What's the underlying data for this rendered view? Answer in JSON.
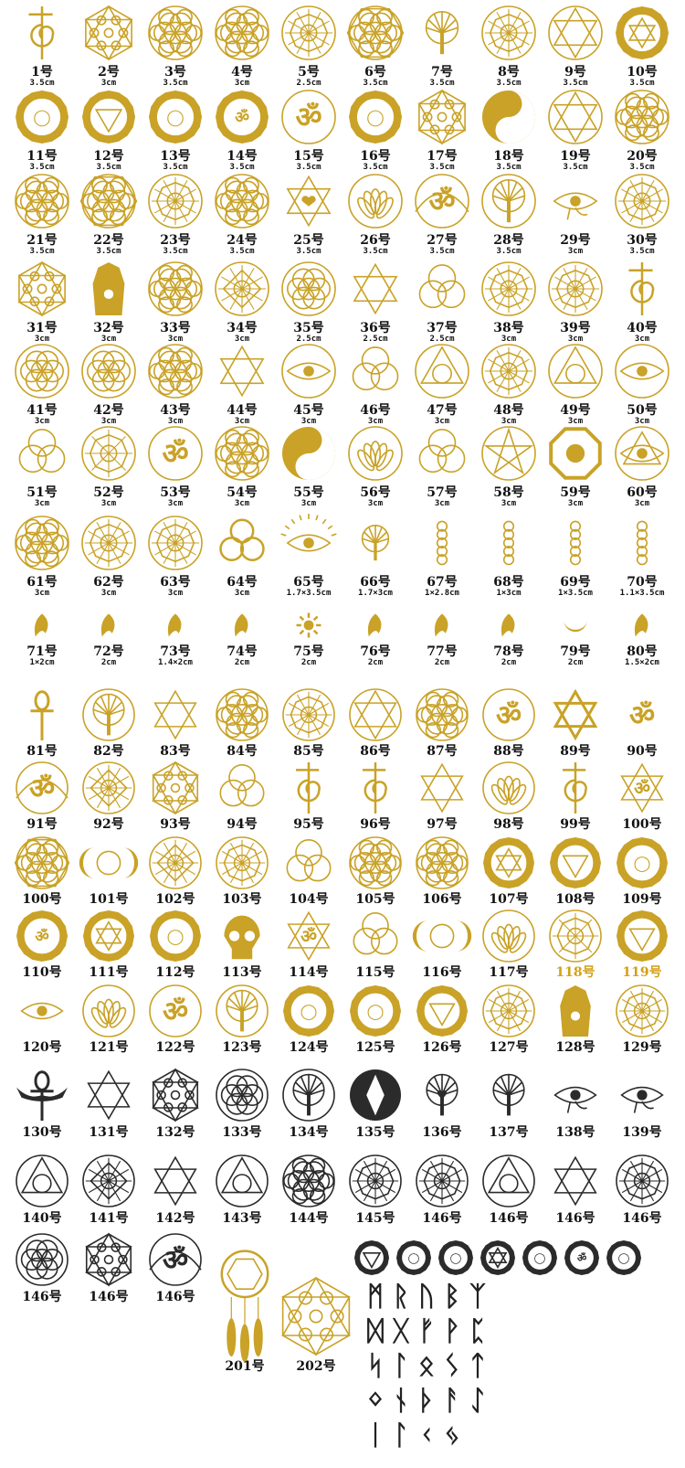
{
  "colors": {
    "gold": "#c9a227",
    "dark": "#2b2b2b",
    "label_gold": "#d4a017"
  },
  "section1": [
    {
      "num": "1号",
      "size": "3.5cm",
      "icon": "reiki-choku-rei-icon"
    },
    {
      "num": "2号",
      "size": "3cm",
      "icon": "metatron-cube-icon"
    },
    {
      "num": "3号",
      "size": "3.5cm",
      "icon": "flower-of-life-icon"
    },
    {
      "num": "4号",
      "size": "3cm",
      "icon": "flower-of-life-icon"
    },
    {
      "num": "5号",
      "size": "2.5cm",
      "icon": "star-circle-icon"
    },
    {
      "num": "6号",
      "size": "3.5cm",
      "icon": "flower-of-life-hexagon-icon"
    },
    {
      "num": "7号",
      "size": "3.5cm",
      "icon": "tree-of-life-icon"
    },
    {
      "num": "8号",
      "size": "3.5cm",
      "icon": "mandala-icon"
    },
    {
      "num": "9号",
      "size": "3.5cm",
      "icon": "star-of-david-circle-icon"
    },
    {
      "num": "10号",
      "size": "3.5cm",
      "icon": "heart-chakra-icon"
    },
    {
      "num": "11号",
      "size": "3.5cm",
      "icon": "sacral-chakra-icon"
    },
    {
      "num": "12号",
      "size": "3.5cm",
      "icon": "root-chakra-icon"
    },
    {
      "num": "13号",
      "size": "3.5cm",
      "icon": "throat-chakra-icon"
    },
    {
      "num": "14号",
      "size": "3.5cm",
      "icon": "third-eye-chakra-icon"
    },
    {
      "num": "15号",
      "size": "3.5cm",
      "icon": "om-mandala-icon"
    },
    {
      "num": "16号",
      "size": "3.5cm",
      "icon": "crown-chakra-icon"
    },
    {
      "num": "17号",
      "size": "3.5cm",
      "icon": "metatron-cube-icon"
    },
    {
      "num": "18号",
      "size": "3.5cm",
      "icon": "yin-yang-icon"
    },
    {
      "num": "19号",
      "size": "3.5cm",
      "icon": "star-of-david-flower-icon"
    },
    {
      "num": "20号",
      "size": "3.5cm",
      "icon": "flower-of-life-icon"
    },
    {
      "num": "21号",
      "size": "3.5cm",
      "icon": "flower-of-life-icon"
    },
    {
      "num": "22号",
      "size": "3.5cm",
      "icon": "flower-of-life-hexagon-icon"
    },
    {
      "num": "23号",
      "size": "3.5cm",
      "icon": "spiral-mandala-icon"
    },
    {
      "num": "24号",
      "size": "3.5cm",
      "icon": "flower-of-life-icon"
    },
    {
      "num": "25号",
      "size": "3.5cm",
      "icon": "star-of-david-heart-icon"
    },
    {
      "num": "26号",
      "size": "3.5cm",
      "icon": "lotus-mandala-icon"
    },
    {
      "num": "27号",
      "size": "3.5cm",
      "icon": "om-lotus-icon"
    },
    {
      "num": "28号",
      "size": "3.5cm",
      "icon": "tree-of-life-circle-icon"
    },
    {
      "num": "29号",
      "size": "3cm",
      "icon": "eye-of-horus-icon"
    },
    {
      "num": "30号",
      "size": "3.5cm",
      "icon": "star-mandala-icon"
    },
    {
      "num": "31号",
      "size": "3cm",
      "icon": "metatron-cube-icon"
    },
    {
      "num": "32号",
      "size": "3cm",
      "icon": "hamsa-icon"
    },
    {
      "num": "33号",
      "size": "3cm",
      "icon": "flower-of-life-icon"
    },
    {
      "num": "34号",
      "size": "3cm",
      "icon": "sri-yantra-icon"
    },
    {
      "num": "35号",
      "size": "2.5cm",
      "icon": "seed-of-life-icon"
    },
    {
      "num": "36号",
      "size": "2.5cm",
      "icon": "star-of-david-icon"
    },
    {
      "num": "37号",
      "size": "2.5cm",
      "icon": "celtic-knot-icon"
    },
    {
      "num": "38号",
      "size": "3cm",
      "icon": "star-circle-icon"
    },
    {
      "num": "39号",
      "size": "3cm",
      "icon": "star-mandala-icon"
    },
    {
      "num": "40号",
      "size": "3cm",
      "icon": "reiki-symbol-icon"
    },
    {
      "num": "41号",
      "size": "3cm",
      "icon": "seed-of-life-icon"
    },
    {
      "num": "42号",
      "size": "3cm",
      "icon": "seed-of-life-icon"
    },
    {
      "num": "43号",
      "size": "3cm",
      "icon": "flower-of-life-icon"
    },
    {
      "num": "44号",
      "size": "3cm",
      "icon": "star-of-david-icon"
    },
    {
      "num": "45号",
      "size": "3cm",
      "icon": "eye-circle-icon"
    },
    {
      "num": "46号",
      "size": "3cm",
      "icon": "triquetra-icon"
    },
    {
      "num": "47号",
      "size": "3cm",
      "icon": "triangle-circle-icon"
    },
    {
      "num": "48号",
      "size": "3cm",
      "icon": "mandala-icon"
    },
    {
      "num": "49号",
      "size": "3cm",
      "icon": "triangle-circle-icon"
    },
    {
      "num": "50号",
      "size": "3cm",
      "icon": "eye-mandala-icon"
    },
    {
      "num": "51号",
      "size": "3cm",
      "icon": "triquetra-icon"
    },
    {
      "num": "52号",
      "size": "3cm",
      "icon": "vegvisir-icon"
    },
    {
      "num": "53号",
      "size": "3cm",
      "icon": "om-circle-icon"
    },
    {
      "num": "54号",
      "size": "3cm",
      "icon": "flower-of-life-icon"
    },
    {
      "num": "55号",
      "size": "3cm",
      "icon": "yin-yang-icon"
    },
    {
      "num": "56号",
      "size": "3cm",
      "icon": "lotus-circle-icon"
    },
    {
      "num": "57号",
      "size": "3cm",
      "icon": "triquetra-icon"
    },
    {
      "num": "58号",
      "size": "3cm",
      "icon": "pentagram-icon"
    },
    {
      "num": "59号",
      "size": "3cm",
      "icon": "bagua-icon"
    },
    {
      "num": "60号",
      "size": "3cm",
      "icon": "eye-pyramid-icon"
    },
    {
      "num": "61号",
      "size": "3cm",
      "icon": "flower-of-life-icon"
    },
    {
      "num": "62号",
      "size": "3cm",
      "icon": "star-circle-icon"
    },
    {
      "num": "63号",
      "size": "3cm",
      "icon": "mandala-icon"
    },
    {
      "num": "64号",
      "size": "3cm",
      "icon": "triskele-icon"
    },
    {
      "num": "65号",
      "size": "1.7×3.5cm",
      "icon": "eye-rays-icon"
    },
    {
      "num": "66号",
      "size": "1.7×3cm",
      "icon": "tree-of-life-icon"
    },
    {
      "num": "67号",
      "size": "1×2.8cm",
      "icon": "seed-chain-icon"
    },
    {
      "num": "68号",
      "size": "1×3cm",
      "icon": "seed-chain-icon"
    },
    {
      "num": "69号",
      "size": "1×3.5cm",
      "icon": "seed-chain-icon"
    },
    {
      "num": "70号",
      "size": "1.1×3.5cm",
      "icon": "seed-chain-icon"
    },
    {
      "num": "71号",
      "size": "1×2cm",
      "icon": "sanskrit-glyph-icon"
    },
    {
      "num": "72号",
      "size": "2cm",
      "icon": "sanskrit-glyph-icon"
    },
    {
      "num": "73号",
      "size": "1.4×2cm",
      "icon": "sanskrit-glyph-icon"
    },
    {
      "num": "74号",
      "size": "2cm",
      "icon": "sanskrit-glyph-icon"
    },
    {
      "num": "75号",
      "size": "2cm",
      "icon": "sun-glyph-icon"
    },
    {
      "num": "76号",
      "size": "2cm",
      "icon": "sanskrit-glyph-icon"
    },
    {
      "num": "77号",
      "size": "2cm",
      "icon": "sanskrit-glyph-icon"
    },
    {
      "num": "78号",
      "size": "2cm",
      "icon": "sanskrit-glyph-icon"
    },
    {
      "num": "79号",
      "size": "2cm",
      "icon": "crescent-glyph-icon"
    },
    {
      "num": "80号",
      "size": "1.5×2cm",
      "icon": "sanskrit-glyph-icon"
    }
  ],
  "section2": [
    {
      "num": "81号",
      "icon": "ankh-icon"
    },
    {
      "num": "82号",
      "icon": "tree-of-life-circle-icon"
    },
    {
      "num": "83号",
      "icon": "merkaba-icon"
    },
    {
      "num": "84号",
      "icon": "flower-of-life-icon"
    },
    {
      "num": "85号",
      "icon": "star-mandala-icon"
    },
    {
      "num": "86号",
      "icon": "star-of-david-flower-icon"
    },
    {
      "num": "87号",
      "icon": "flower-of-life-icon"
    },
    {
      "num": "88号",
      "icon": "om-circle-icon"
    },
    {
      "num": "89号",
      "icon": "pinwheel-star-icon"
    },
    {
      "num": "90号",
      "icon": "om-icon"
    },
    {
      "num": "91号",
      "icon": "om-lotus-icon"
    },
    {
      "num": "92号",
      "icon": "sri-yantra-icon"
    },
    {
      "num": "93号",
      "icon": "metatron-cube-icon"
    },
    {
      "num": "94号",
      "icon": "valknut-icon"
    },
    {
      "num": "95号",
      "icon": "reiki-choku-rei-icon"
    },
    {
      "num": "96号",
      "icon": "reiki-symbol-icon"
    },
    {
      "num": "97号",
      "icon": "star-of-david-icon"
    },
    {
      "num": "98号",
      "icon": "lotus-circle-icon"
    },
    {
      "num": "99号",
      "icon": "reiki-choku-rei-icon"
    },
    {
      "num": "100号",
      "icon": "star-of-david-om-icon"
    },
    {
      "num": "100号",
      "icon": "flower-of-life-hexagon-icon"
    },
    {
      "num": "101号",
      "icon": "triple-moon-goddess-icon"
    },
    {
      "num": "102号",
      "icon": "sri-yantra-icon"
    },
    {
      "num": "103号",
      "icon": "star-mandala-icon"
    },
    {
      "num": "104号",
      "icon": "triquetra-icon"
    },
    {
      "num": "105号",
      "icon": "flower-of-life-icon"
    },
    {
      "num": "106号",
      "icon": "flower-of-life-icon"
    },
    {
      "num": "107号",
      "icon": "heart-chakra-icon"
    },
    {
      "num": "108号",
      "icon": "root-chakra-icon"
    },
    {
      "num": "109号",
      "icon": "sacral-chakra-icon"
    },
    {
      "num": "110号",
      "icon": "third-eye-chakra-icon"
    },
    {
      "num": "111号",
      "icon": "heart-chakra-icon"
    },
    {
      "num": "112号",
      "icon": "throat-chakra-icon"
    },
    {
      "num": "113号",
      "icon": "skull-icon"
    },
    {
      "num": "114号",
      "icon": "star-of-david-om-icon"
    },
    {
      "num": "115号",
      "icon": "triquetra-icon"
    },
    {
      "num": "116号",
      "icon": "triple-moon-icon"
    },
    {
      "num": "117号",
      "icon": "lotus-circle-icon"
    },
    {
      "num": "118号",
      "icon": "vegvisir-icon",
      "gold": true
    },
    {
      "num": "119号",
      "icon": "root-chakra-icon",
      "gold": true
    },
    {
      "num": "120号",
      "icon": "eye-icon"
    },
    {
      "num": "121号",
      "icon": "lotus-mandala-icon"
    },
    {
      "num": "122号",
      "icon": "om-mandala-icon"
    },
    {
      "num": "123号",
      "icon": "tree-of-life-circle-icon"
    },
    {
      "num": "124号",
      "icon": "crown-chakra-icon"
    },
    {
      "num": "125号",
      "icon": "sacral-chakra-icon"
    },
    {
      "num": "126号",
      "icon": "root-chakra-icon"
    },
    {
      "num": "127号",
      "icon": "star-mandala-icon"
    },
    {
      "num": "128号",
      "icon": "hamsa-icon"
    },
    {
      "num": "129号",
      "icon": "star-mandala-icon"
    }
  ],
  "section3": [
    {
      "num": "130号",
      "icon": "winged-ankh-icon"
    },
    {
      "num": "131号",
      "icon": "merkaba-icon"
    },
    {
      "num": "132号",
      "icon": "metatron-cube-icon"
    },
    {
      "num": "133号",
      "icon": "seed-of-life-icon"
    },
    {
      "num": "134号",
      "icon": "tree-of-life-circle-icon"
    },
    {
      "num": "135号",
      "icon": "hunab-ku-icon"
    },
    {
      "num": "136号",
      "icon": "tree-of-life-heart-icon"
    },
    {
      "num": "137号",
      "icon": "tree-of-life-icon"
    },
    {
      "num": "138号",
      "icon": "eye-of-horus-icon"
    },
    {
      "num": "139号",
      "icon": "eye-of-horus-icon"
    },
    {
      "num": "140号",
      "icon": "triangle-circle-icon"
    },
    {
      "num": "141号",
      "icon": "yantra-icon"
    },
    {
      "num": "142号",
      "icon": "star-of-david-icon"
    },
    {
      "num": "143号",
      "icon": "triangle-circle-icon"
    },
    {
      "num": "144号",
      "icon": "flower-of-life-icon"
    },
    {
      "num": "145号",
      "icon": "mandala-icon"
    },
    {
      "num": "146号",
      "icon": "spiral-mandala-icon"
    },
    {
      "num": "146号",
      "icon": "triangle-flower-icon"
    },
    {
      "num": "146号",
      "icon": "star-of-david-icon"
    },
    {
      "num": "146号",
      "icon": "star-mandala-icon"
    },
    {
      "num": "146号",
      "icon": "seed-of-life-icon"
    },
    {
      "num": "146号",
      "icon": "metatron-cube-icon"
    },
    {
      "num": "146号",
      "icon": "om-lotus-icon"
    }
  ],
  "dreamcatchers": [
    {
      "num": "201号",
      "icon": "dreamcatcher-icon"
    },
    {
      "num": "202号",
      "icon": "dreamcatcher-metatron-icon"
    }
  ],
  "chakra_set": [
    "root-chakra-icon",
    "sacral-chakra-icon",
    "solar-plexus-chakra-icon",
    "heart-chakra-icon",
    "throat-chakra-icon",
    "third-eye-chakra-icon",
    "crown-chakra-icon"
  ],
  "runes": [
    "ᛗ",
    "ᚱ",
    "ᚢ",
    "ᛒ",
    "ᛉ",
    "ᛞ",
    "ᚷ",
    "ᚠ",
    "ᚹ",
    "ᛈ",
    "ᛋ",
    "ᛚ",
    "ᛟ",
    "ᛊ",
    "ᛏ",
    "ᛜ",
    "ᚾ",
    "ᚦ",
    "ᚨ",
    "ᛇ",
    "ᛁ",
    "ᛚ",
    "ᚲ",
    "ᛃ"
  ]
}
